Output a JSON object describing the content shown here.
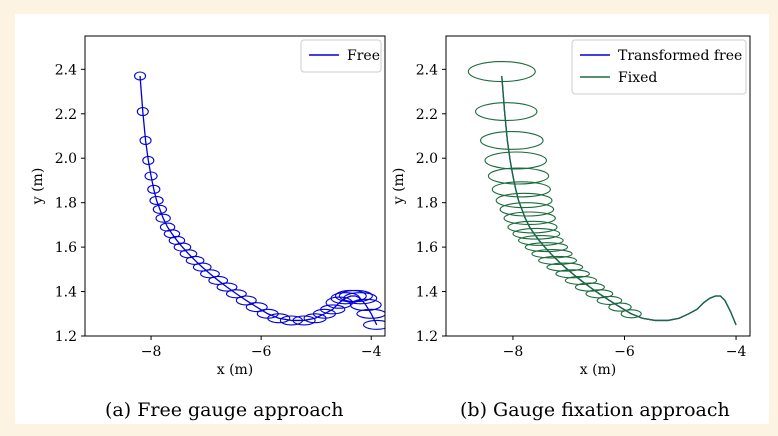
{
  "colors": {
    "page_background": "#fdf3e3",
    "figure_background": "#ffffff",
    "free": "#0000dd",
    "fixed": "#1a6b3a"
  },
  "captions": {
    "a": "(a) Free gauge approach",
    "b": "(b) Gauge fixation approach"
  },
  "chart_data": [
    {
      "type": "line",
      "title": "",
      "xlabel": "x (m)",
      "ylabel": "y (m)",
      "xlim": [
        -9.2,
        -3.75
      ],
      "ylim": [
        1.2,
        2.55
      ],
      "xticks": [
        -8,
        -6,
        -4
      ],
      "xtick_labels": [
        "−8",
        "−6",
        "−4"
      ],
      "yticks": [
        1.2,
        1.4,
        1.6,
        1.8,
        2.0,
        2.2,
        2.4
      ],
      "ytick_labels": [
        "1.2",
        "1.4",
        "1.6",
        "1.8",
        "2.0",
        "2.2",
        "2.4"
      ],
      "legend": {
        "placement": "top-right",
        "entries": [
          {
            "label": "Free",
            "color": "#0000dd"
          }
        ]
      },
      "series": [
        {
          "name": "Free",
          "color": "#0000dd",
          "marker": "ellipse",
          "x": [
            -8.2,
            -8.15,
            -8.1,
            -8.05,
            -8.0,
            -7.95,
            -7.9,
            -7.84,
            -7.78,
            -7.7,
            -7.62,
            -7.53,
            -7.43,
            -7.32,
            -7.2,
            -7.07,
            -6.93,
            -6.78,
            -6.62,
            -6.45,
            -6.27,
            -6.08,
            -5.88,
            -5.68,
            -5.45,
            -5.22,
            -5.02,
            -4.85,
            -4.7,
            -4.58,
            -4.47,
            -4.37,
            -4.28,
            -4.2,
            -4.1,
            -4.0,
            -3.9
          ],
          "y": [
            2.37,
            2.21,
            2.08,
            1.99,
            1.92,
            1.86,
            1.81,
            1.77,
            1.73,
            1.69,
            1.66,
            1.63,
            1.6,
            1.57,
            1.54,
            1.51,
            1.48,
            1.45,
            1.42,
            1.39,
            1.36,
            1.33,
            1.3,
            1.28,
            1.27,
            1.27,
            1.28,
            1.3,
            1.32,
            1.35,
            1.37,
            1.38,
            1.38,
            1.37,
            1.34,
            1.3,
            1.25
          ],
          "ellipse_half_width": [
            0.1,
            0.1,
            0.1,
            0.1,
            0.11,
            0.11,
            0.12,
            0.12,
            0.13,
            0.13,
            0.14,
            0.14,
            0.15,
            0.15,
            0.16,
            0.16,
            0.17,
            0.17,
            0.18,
            0.18,
            0.18,
            0.19,
            0.19,
            0.2,
            0.2,
            0.2,
            0.2,
            0.2,
            0.22,
            0.24,
            0.26,
            0.28,
            0.3,
            0.3,
            0.28,
            0.26,
            0.24
          ],
          "ellipse_half_height": [
            0.015,
            0.015,
            0.015,
            0.015,
            0.015,
            0.015,
            0.015,
            0.015,
            0.015,
            0.015,
            0.015,
            0.015,
            0.015,
            0.015,
            0.015,
            0.015,
            0.015,
            0.015,
            0.015,
            0.015,
            0.02,
            0.02,
            0.02,
            0.02,
            0.02,
            0.02,
            0.02,
            0.02,
            0.02,
            0.025,
            0.025,
            0.025,
            0.025,
            0.025,
            0.025,
            0.02,
            0.02
          ]
        }
      ]
    },
    {
      "type": "line",
      "title": "",
      "xlabel": "x (m)",
      "ylabel": "y (m)",
      "xlim": [
        -9.2,
        -3.75
      ],
      "ylim": [
        1.2,
        2.55
      ],
      "xticks": [
        -8,
        -6,
        -4
      ],
      "xtick_labels": [
        "−8",
        "−6",
        "−4"
      ],
      "yticks": [
        1.2,
        1.4,
        1.6,
        1.8,
        2.0,
        2.2,
        2.4
      ],
      "ytick_labels": [
        "1.2",
        "1.4",
        "1.6",
        "1.8",
        "2.0",
        "2.2",
        "2.4"
      ],
      "legend": {
        "placement": "top-right",
        "entries": [
          {
            "label": "Transformed free",
            "color": "#0000dd"
          },
          {
            "label": "Fixed",
            "color": "#1a6b3a"
          }
        ]
      },
      "series": [
        {
          "name": "Transformed free",
          "color": "#0000dd",
          "x": [
            -8.2,
            -8.15,
            -8.1,
            -8.05,
            -8.0,
            -7.95,
            -7.9,
            -7.84,
            -7.78,
            -7.7,
            -7.62,
            -7.53,
            -7.43,
            -7.32,
            -7.2,
            -7.07,
            -6.93,
            -6.78,
            -6.62,
            -6.45,
            -6.27,
            -6.08,
            -5.88,
            -5.68,
            -5.45,
            -5.22,
            -5.02,
            -4.85,
            -4.7,
            -4.58,
            -4.47,
            -4.37,
            -4.28,
            -4.2,
            -4.1,
            -4.0
          ],
          "y": [
            2.37,
            2.21,
            2.08,
            1.99,
            1.92,
            1.86,
            1.81,
            1.77,
            1.73,
            1.69,
            1.66,
            1.63,
            1.6,
            1.57,
            1.54,
            1.51,
            1.48,
            1.45,
            1.42,
            1.39,
            1.36,
            1.33,
            1.3,
            1.28,
            1.27,
            1.27,
            1.28,
            1.3,
            1.32,
            1.35,
            1.37,
            1.38,
            1.38,
            1.36,
            1.31,
            1.25
          ]
        },
        {
          "name": "Fixed",
          "color": "#1a6b3a",
          "marker": "ellipse",
          "x": [
            -8.2,
            -8.15,
            -8.1,
            -8.05,
            -8.0,
            -7.95,
            -7.9,
            -7.84,
            -7.78,
            -7.7,
            -7.62,
            -7.53,
            -7.43,
            -7.32,
            -7.2,
            -7.07,
            -6.93,
            -6.78,
            -6.62,
            -6.45,
            -6.27,
            -6.08,
            -5.88,
            -5.68,
            -5.45,
            -5.22,
            -5.02,
            -4.85,
            -4.7,
            -4.58,
            -4.47,
            -4.37,
            -4.28,
            -4.2,
            -4.1,
            -4.0
          ],
          "y": [
            2.37,
            2.21,
            2.08,
            1.99,
            1.92,
            1.86,
            1.81,
            1.77,
            1.73,
            1.69,
            1.66,
            1.63,
            1.6,
            1.57,
            1.54,
            1.51,
            1.48,
            1.45,
            1.42,
            1.39,
            1.36,
            1.33,
            1.3,
            1.28,
            1.27,
            1.27,
            1.28,
            1.3,
            1.32,
            1.35,
            1.37,
            1.38,
            1.38,
            1.36,
            1.31,
            1.25
          ],
          "ellipse_center_x": [
            -8.2,
            -8.12,
            -8.02,
            -7.95,
            -7.9,
            -7.85,
            -7.8,
            -7.75,
            -7.7,
            -7.65,
            -7.58,
            -7.5,
            -7.4,
            -7.3,
            -7.2,
            -7.07,
            -6.93,
            -6.78,
            -6.62,
            -6.45,
            -6.27,
            -6.08,
            -5.88
          ],
          "ellipse_center_y": [
            2.39,
            2.21,
            2.08,
            1.99,
            1.92,
            1.86,
            1.81,
            1.77,
            1.73,
            1.69,
            1.66,
            1.63,
            1.6,
            1.57,
            1.54,
            1.51,
            1.48,
            1.45,
            1.42,
            1.39,
            1.36,
            1.33,
            1.3
          ],
          "ellipse_half_width": [
            0.6,
            0.55,
            0.56,
            0.55,
            0.54,
            0.52,
            0.5,
            0.48,
            0.46,
            0.44,
            0.42,
            0.4,
            0.38,
            0.36,
            0.34,
            0.32,
            0.3,
            0.28,
            0.26,
            0.24,
            0.22,
            0.2,
            0.18
          ],
          "ellipse_half_height": [
            0.045,
            0.04,
            0.04,
            0.038,
            0.036,
            0.034,
            0.032,
            0.03,
            0.028,
            0.026,
            0.024,
            0.022,
            0.02,
            0.019,
            0.018,
            0.017,
            0.016,
            0.015,
            0.014,
            0.013,
            0.012,
            0.011,
            0.01
          ]
        }
      ]
    }
  ]
}
